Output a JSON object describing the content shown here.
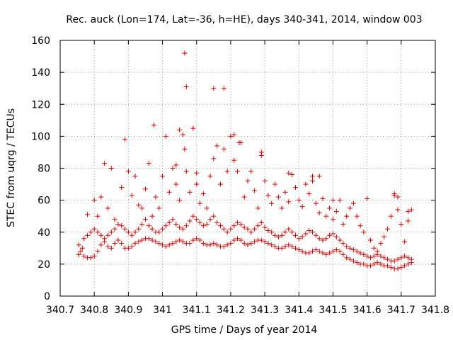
{
  "chart_data": {
    "type": "scatter",
    "title": "Rec. auck (Lon=174, Lat=-36, h=HE), days 340-341, 2014, window 003",
    "xlabel": "GPS time / Days of year 2014",
    "ylabel": "STEC from uqrg / TECUs",
    "xlim": [
      340.7,
      341.8
    ],
    "ylim": [
      0,
      160
    ],
    "x_ticks": [
      "340.7",
      "340.8",
      "340.9",
      "341",
      "341.1",
      "341.2",
      "341.3",
      "341.4",
      "341.5",
      "341.6",
      "341.7",
      "341.8"
    ],
    "y_ticks": [
      "0",
      "20",
      "40",
      "60",
      "80",
      "100",
      "120",
      "140",
      "160"
    ],
    "grid": true,
    "marker": "plus",
    "series_color": "#cc0000",
    "series": [
      {
        "points": [
          [
            340.755,
            26
          ],
          [
            340.76,
            28
          ],
          [
            340.765,
            30
          ],
          [
            340.755,
            32
          ],
          [
            340.77,
            25
          ],
          [
            340.78,
            24
          ],
          [
            340.79,
            24
          ],
          [
            340.8,
            25
          ],
          [
            340.81,
            28
          ],
          [
            340.82,
            32
          ],
          [
            340.83,
            34
          ],
          [
            340.84,
            31
          ],
          [
            340.85,
            30
          ],
          [
            340.86,
            33
          ],
          [
            340.87,
            35
          ],
          [
            340.88,
            33
          ],
          [
            340.89,
            30
          ],
          [
            340.9,
            30
          ],
          [
            340.91,
            31
          ],
          [
            340.92,
            33
          ],
          [
            340.93,
            34
          ],
          [
            340.94,
            35
          ],
          [
            340.95,
            36
          ],
          [
            340.96,
            36
          ],
          [
            340.97,
            35
          ],
          [
            340.98,
            34
          ],
          [
            340.99,
            33
          ],
          [
            341.0,
            32
          ],
          [
            341.01,
            31
          ],
          [
            341.02,
            32
          ],
          [
            341.03,
            33
          ],
          [
            341.04,
            34
          ],
          [
            341.05,
            35
          ],
          [
            341.06,
            34
          ],
          [
            341.07,
            33
          ],
          [
            341.08,
            33
          ],
          [
            341.09,
            35
          ],
          [
            341.1,
            36
          ],
          [
            341.11,
            35
          ],
          [
            341.12,
            33
          ],
          [
            341.13,
            32
          ],
          [
            341.14,
            32
          ],
          [
            341.15,
            33
          ],
          [
            341.16,
            32
          ],
          [
            341.17,
            31
          ],
          [
            341.18,
            31
          ],
          [
            341.19,
            32
          ],
          [
            341.2,
            33
          ],
          [
            341.21,
            35
          ],
          [
            341.22,
            36
          ],
          [
            341.23,
            35
          ],
          [
            341.24,
            33
          ],
          [
            341.25,
            32
          ],
          [
            341.26,
            33
          ],
          [
            341.27,
            34
          ],
          [
            341.28,
            35
          ],
          [
            341.29,
            35
          ],
          [
            341.3,
            34
          ],
          [
            341.31,
            33
          ],
          [
            341.32,
            32
          ],
          [
            341.33,
            31
          ],
          [
            341.34,
            30
          ],
          [
            341.35,
            30
          ],
          [
            341.36,
            31
          ],
          [
            341.37,
            32
          ],
          [
            341.38,
            31
          ],
          [
            341.39,
            30
          ],
          [
            341.4,
            29
          ],
          [
            341.41,
            28
          ],
          [
            341.42,
            27
          ],
          [
            341.43,
            27
          ],
          [
            341.44,
            28
          ],
          [
            341.45,
            29
          ],
          [
            341.46,
            28
          ],
          [
            341.47,
            27
          ],
          [
            341.48,
            26
          ],
          [
            341.49,
            27
          ],
          [
            341.5,
            28
          ],
          [
            341.51,
            29
          ],
          [
            341.52,
            28
          ],
          [
            341.53,
            26
          ],
          [
            341.54,
            24
          ],
          [
            341.55,
            23
          ],
          [
            341.56,
            22
          ],
          [
            341.57,
            21
          ],
          [
            341.58,
            20
          ],
          [
            341.59,
            20
          ],
          [
            341.6,
            19
          ],
          [
            341.61,
            19
          ],
          [
            341.62,
            20
          ],
          [
            341.63,
            21
          ],
          [
            341.64,
            20
          ],
          [
            341.65,
            19
          ],
          [
            341.66,
            19
          ],
          [
            341.67,
            18
          ],
          [
            341.68,
            17
          ],
          [
            341.69,
            17
          ],
          [
            341.7,
            18
          ],
          [
            341.71,
            19
          ],
          [
            341.72,
            20
          ],
          [
            341.73,
            21
          ],
          [
            340.77,
            36
          ],
          [
            340.78,
            38
          ],
          [
            340.79,
            40
          ],
          [
            340.8,
            42
          ],
          [
            340.81,
            40
          ],
          [
            340.82,
            38
          ],
          [
            340.83,
            36
          ],
          [
            340.84,
            38
          ],
          [
            340.85,
            40
          ],
          [
            340.86,
            42
          ],
          [
            340.87,
            45
          ],
          [
            340.88,
            44
          ],
          [
            340.89,
            42
          ],
          [
            340.9,
            40
          ],
          [
            340.91,
            38
          ],
          [
            340.92,
            40
          ],
          [
            340.93,
            42
          ],
          [
            340.94,
            45
          ],
          [
            340.95,
            48
          ],
          [
            340.96,
            44
          ],
          [
            340.97,
            42
          ],
          [
            340.98,
            40
          ],
          [
            340.99,
            40
          ],
          [
            341.0,
            42
          ],
          [
            341.01,
            44
          ],
          [
            341.02,
            46
          ],
          [
            341.03,
            48
          ],
          [
            341.04,
            45
          ],
          [
            341.05,
            43
          ],
          [
            341.06,
            42
          ],
          [
            341.07,
            44
          ],
          [
            341.08,
            47
          ],
          [
            341.09,
            50
          ],
          [
            341.1,
            48
          ],
          [
            341.11,
            46
          ],
          [
            341.12,
            44
          ],
          [
            341.13,
            45
          ],
          [
            341.14,
            48
          ],
          [
            341.15,
            50
          ],
          [
            341.16,
            46
          ],
          [
            341.17,
            44
          ],
          [
            341.18,
            42
          ],
          [
            341.19,
            40
          ],
          [
            341.2,
            42
          ],
          [
            341.21,
            44
          ],
          [
            341.22,
            46
          ],
          [
            341.23,
            45
          ],
          [
            341.24,
            43
          ],
          [
            341.25,
            42
          ],
          [
            341.26,
            40
          ],
          [
            341.27,
            42
          ],
          [
            341.28,
            44
          ],
          [
            341.29,
            46
          ],
          [
            341.3,
            43
          ],
          [
            341.31,
            41
          ],
          [
            341.32,
            40
          ],
          [
            341.33,
            38
          ],
          [
            341.34,
            37
          ],
          [
            341.35,
            38
          ],
          [
            341.36,
            40
          ],
          [
            341.37,
            42
          ],
          [
            341.38,
            40
          ],
          [
            341.39,
            38
          ],
          [
            341.4,
            36
          ],
          [
            341.41,
            37
          ],
          [
            341.42,
            39
          ],
          [
            341.43,
            41
          ],
          [
            341.44,
            40
          ],
          [
            341.45,
            38
          ],
          [
            341.46,
            36
          ],
          [
            341.47,
            35
          ],
          [
            341.48,
            36
          ],
          [
            341.49,
            38
          ],
          [
            341.5,
            39
          ],
          [
            341.51,
            37
          ],
          [
            341.52,
            35
          ],
          [
            341.53,
            33
          ],
          [
            341.54,
            31
          ],
          [
            341.55,
            30
          ],
          [
            341.56,
            29
          ],
          [
            341.57,
            28
          ],
          [
            341.58,
            27
          ],
          [
            341.59,
            26
          ],
          [
            341.6,
            25
          ],
          [
            341.61,
            24
          ],
          [
            341.62,
            25
          ],
          [
            341.63,
            26
          ],
          [
            341.64,
            25
          ],
          [
            341.65,
            24
          ],
          [
            341.66,
            23
          ],
          [
            341.67,
            22
          ],
          [
            341.68,
            22
          ],
          [
            341.69,
            23
          ],
          [
            341.7,
            24
          ],
          [
            341.71,
            25
          ],
          [
            341.72,
            24
          ],
          [
            341.73,
            23
          ],
          [
            340.78,
            51
          ],
          [
            340.8,
            60
          ],
          [
            340.81,
            50
          ],
          [
            340.82,
            62
          ],
          [
            340.84,
            55
          ],
          [
            340.86,
            48
          ],
          [
            340.88,
            68
          ],
          [
            340.89,
            98
          ],
          [
            340.9,
            78
          ],
          [
            340.91,
            63
          ],
          [
            340.92,
            75
          ],
          [
            340.93,
            57
          ],
          [
            340.94,
            55
          ],
          [
            340.95,
            67
          ],
          [
            340.96,
            83
          ],
          [
            340.97,
            50
          ],
          [
            340.98,
            62
          ],
          [
            340.99,
            55
          ],
          [
            341.0,
            75
          ],
          [
            341.01,
            100
          ],
          [
            341.02,
            65
          ],
          [
            341.03,
            80
          ],
          [
            341.04,
            70
          ],
          [
            341.05,
            60
          ],
          [
            341.06,
            101
          ],
          [
            341.065,
            92
          ],
          [
            341.07,
            78
          ],
          [
            341.08,
            65
          ],
          [
            341.09,
            105
          ],
          [
            341.1,
            70
          ],
          [
            341.11,
            58
          ],
          [
            341.12,
            64
          ],
          [
            341.13,
            55
          ],
          [
            341.14,
            75
          ],
          [
            341.15,
            86
          ],
          [
            341.16,
            94
          ],
          [
            341.17,
            70
          ],
          [
            341.18,
            92
          ],
          [
            341.19,
            78
          ],
          [
            341.2,
            100
          ],
          [
            341.21,
            85
          ],
          [
            341.22,
            78
          ],
          [
            341.23,
            96
          ],
          [
            341.24,
            62
          ],
          [
            341.25,
            72
          ],
          [
            341.26,
            78
          ],
          [
            341.27,
            66
          ],
          [
            341.28,
            55
          ],
          [
            341.29,
            88
          ],
          [
            341.3,
            72
          ],
          [
            341.31,
            63
          ],
          [
            341.32,
            58
          ],
          [
            341.33,
            70
          ],
          [
            341.34,
            62
          ],
          [
            341.35,
            55
          ],
          [
            341.36,
            65
          ],
          [
            341.37,
            59
          ],
          [
            341.38,
            76
          ],
          [
            341.39,
            68
          ],
          [
            341.4,
            60
          ],
          [
            341.41,
            56
          ],
          [
            341.42,
            70
          ],
          [
            341.43,
            64
          ],
          [
            341.44,
            75
          ],
          [
            341.45,
            58
          ],
          [
            341.46,
            52
          ],
          [
            341.47,
            61
          ],
          [
            341.48,
            50
          ],
          [
            341.49,
            55
          ],
          [
            341.5,
            48
          ],
          [
            341.51,
            53
          ],
          [
            341.52,
            60
          ],
          [
            341.53,
            45
          ],
          [
            341.54,
            50
          ],
          [
            341.55,
            55
          ],
          [
            341.56,
            58
          ],
          [
            341.57,
            50
          ],
          [
            341.58,
            44
          ],
          [
            341.59,
            40
          ],
          [
            341.6,
            61
          ],
          [
            341.61,
            35
          ],
          [
            341.62,
            30
          ],
          [
            341.63,
            28
          ],
          [
            341.64,
            33
          ],
          [
            341.65,
            37
          ],
          [
            341.66,
            42
          ],
          [
            341.67,
            50
          ],
          [
            341.68,
            63
          ],
          [
            341.69,
            54
          ],
          [
            341.7,
            45
          ],
          [
            341.71,
            34
          ],
          [
            341.72,
            47
          ],
          [
            341.73,
            54
          ],
          [
            341.065,
            152
          ],
          [
            341.07,
            131
          ],
          [
            341.15,
            130
          ],
          [
            341.18,
            130
          ],
          [
            341.05,
            104
          ],
          [
            341.1,
            77
          ],
          [
            341.21,
            101
          ],
          [
            341.225,
            96
          ],
          [
            340.975,
            107
          ],
          [
            340.83,
            83
          ],
          [
            340.85,
            80
          ],
          [
            341.04,
            82
          ],
          [
            341.29,
            90
          ],
          [
            341.37,
            77
          ],
          [
            341.46,
            75
          ],
          [
            341.44,
            72
          ],
          [
            341.5,
            60
          ],
          [
            341.68,
            64
          ],
          [
            341.69,
            62
          ],
          [
            341.72,
            53
          ]
        ]
      }
    ]
  }
}
